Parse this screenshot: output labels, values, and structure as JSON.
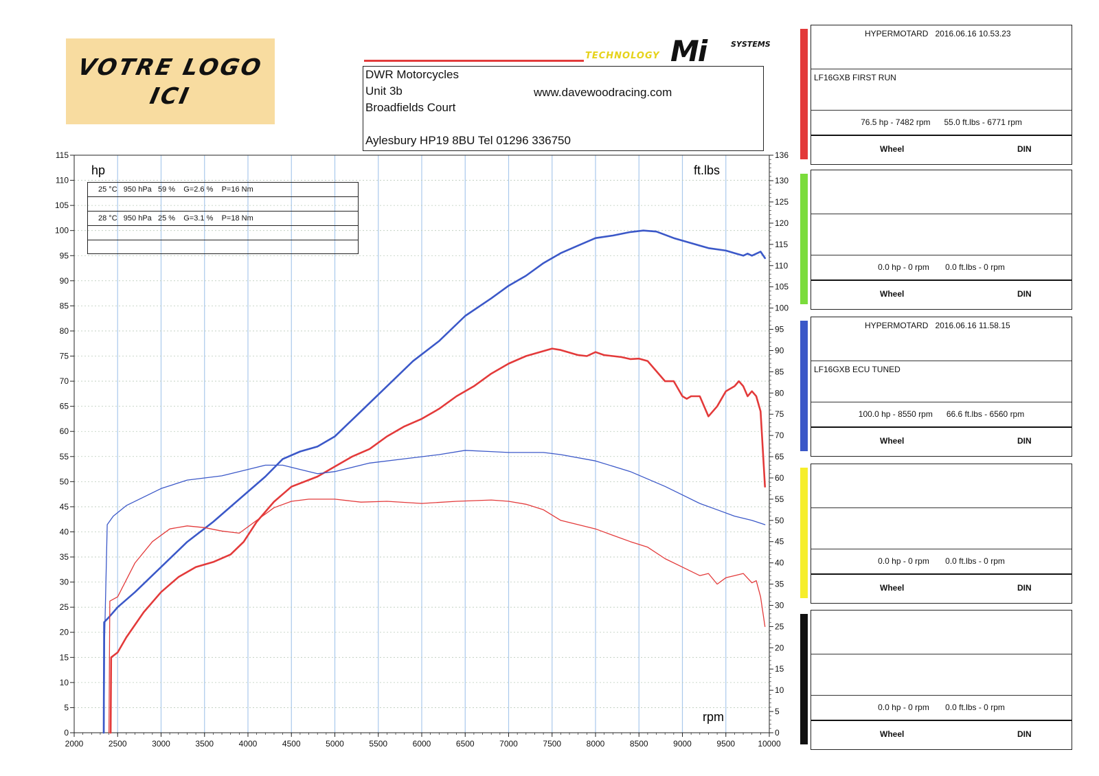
{
  "logo": {
    "line1": "VOTRE LOGO",
    "line2": "ICI"
  },
  "brand": {
    "tech": "TECHNOLOGY",
    "mark": "Mi",
    "sub": "SYSTEMS"
  },
  "address": {
    "line1": "DWR Motorcycles",
    "line2": "Unit 3b",
    "line3": "Broadfields Court",
    "line4": "Aylesbury HP19 8BU   Tel 01296 336750",
    "website": "www.davewoodracing.com"
  },
  "conditions": {
    "run1": "25 °C   950 hPa   59 %    G=2.6 %    P=16 Nm",
    "run2": "28 °C   950 hPa   25 %    G=3.1 %    P=18 Nm"
  },
  "run_cards": [
    {
      "color": "#e33a3a",
      "vehicle": "HYPERMOTARD",
      "timestamp": "2016.06.16 10.53.23",
      "run_name": "LF16GXB FIRST RUN",
      "values": "76.5 hp - 7482 rpm      55.0 ft.lbs - 6771 rpm",
      "wheel": "Wheel",
      "din": "DIN"
    },
    {
      "color": "#7bdc3c",
      "vehicle": "",
      "timestamp": "",
      "run_name": "",
      "values": "0.0 hp - 0 rpm       0.0 ft.lbs - 0 rpm",
      "wheel": "Wheel",
      "din": "DIN"
    },
    {
      "color": "#3b58c8",
      "vehicle": "HYPERMOTARD",
      "timestamp": "2016.06.16 11.58.15",
      "run_name": "LF16GXB ECU TUNED",
      "values": "100.0 hp - 8550 rpm      66.6 ft.lbs - 6560 rpm",
      "wheel": "Wheel",
      "din": "DIN"
    },
    {
      "color": "#f6ee2a",
      "vehicle": "",
      "timestamp": "",
      "run_name": "",
      "values": "0.0 hp - 0 rpm       0.0 ft.lbs - 0 rpm",
      "wheel": "Wheel",
      "din": "DIN"
    },
    {
      "color": "#111111",
      "vehicle": "",
      "timestamp": "",
      "run_name": "",
      "values": "0.0 hp - 0 rpm       0.0 ft.lbs - 0 rpm",
      "wheel": "Wheel",
      "din": "DIN"
    }
  ],
  "chart_data": {
    "type": "line",
    "ylabel": "hp",
    "y2label": "ft.lbs",
    "xlabel": "rpm",
    "xlim": [
      2000,
      10000
    ],
    "ylim": [
      0,
      115
    ],
    "y2lim": [
      0,
      136
    ],
    "x_ticks": [
      2000,
      2500,
      3000,
      3500,
      4000,
      4500,
      5000,
      5500,
      6000,
      6500,
      7000,
      7500,
      8000,
      8500,
      9000,
      9500,
      10000
    ],
    "y_ticks": [
      0,
      5,
      10,
      15,
      20,
      25,
      30,
      35,
      40,
      45,
      50,
      55,
      60,
      65,
      70,
      75,
      80,
      85,
      90,
      95,
      100,
      105,
      110,
      115
    ],
    "y2_ticks": [
      0,
      5,
      10,
      15,
      20,
      25,
      30,
      35,
      40,
      45,
      50,
      55,
      60,
      65,
      70,
      75,
      80,
      85,
      90,
      95,
      100,
      105,
      110,
      115,
      120,
      125,
      130,
      136
    ],
    "grid": true,
    "series": [
      {
        "run": "LF16GXB FIRST RUN",
        "quantity": "hp",
        "axis": "left",
        "color": "#e33a3a",
        "weight": "thick",
        "x": [
          2420,
          2425,
          2500,
          2600,
          2800,
          3000,
          3200,
          3400,
          3600,
          3800,
          3950,
          4100,
          4300,
          4500,
          4800,
          5000,
          5200,
          5400,
          5600,
          5800,
          6000,
          6200,
          6400,
          6600,
          6800,
          7000,
          7200,
          7400,
          7500,
          7600,
          7800,
          7900,
          8000,
          8100,
          8200,
          8300,
          8400,
          8500,
          8600,
          8700,
          8800,
          8900,
          9000,
          9050,
          9100,
          9200,
          9300,
          9400,
          9500,
          9600,
          9650,
          9700,
          9750,
          9800,
          9850,
          9900,
          9950
        ],
        "y": [
          0,
          15,
          16,
          19,
          24,
          28,
          31,
          33,
          34,
          35.5,
          38,
          42,
          46,
          49,
          51,
          53,
          55,
          56.5,
          59,
          61,
          62.5,
          64.5,
          67,
          69,
          71.5,
          73.5,
          75,
          76,
          76.5,
          76.2,
          75.2,
          75,
          75.8,
          75.2,
          75,
          74.8,
          74.4,
          74.5,
          74,
          72,
          70,
          70,
          67,
          66.5,
          67,
          67,
          63,
          65,
          68,
          69,
          70,
          69,
          67,
          68,
          67,
          64,
          49
        ]
      },
      {
        "run": "LF16GXB ECU TUNED",
        "quantity": "hp",
        "axis": "left",
        "color": "#3b58c8",
        "weight": "thick",
        "x": [
          2340,
          2345,
          2400,
          2500,
          2700,
          3000,
          3300,
          3600,
          3900,
          4200,
          4400,
          4600,
          4800,
          5000,
          5300,
          5600,
          5900,
          6200,
          6500,
          6800,
          7000,
          7200,
          7400,
          7600,
          7800,
          8000,
          8200,
          8400,
          8550,
          8700,
          8900,
          9100,
          9300,
          9500,
          9600,
          9700,
          9750,
          9800,
          9900,
          9950
        ],
        "y": [
          0,
          22,
          23,
          25,
          28,
          33,
          38,
          42,
          46.5,
          51,
          54.5,
          56,
          57,
          59,
          64,
          69,
          74,
          78,
          83,
          86.5,
          89,
          91,
          93.5,
          95.5,
          97,
          98.5,
          99,
          99.7,
          100,
          99.8,
          98.5,
          97.5,
          96.5,
          96,
          95.5,
          95,
          95.4,
          95,
          95.8,
          94.5
        ]
      },
      {
        "run": "LF16GXB FIRST RUN",
        "quantity": "ft.lbs",
        "axis": "right",
        "color": "#e33a3a",
        "weight": "thin",
        "x": [
          2400,
          2410,
          2500,
          2700,
          2900,
          3100,
          3300,
          3500,
          3700,
          3900,
          4100,
          4300,
          4500,
          4700,
          5000,
          5300,
          5600,
          6000,
          6400,
          6800,
          7000,
          7200,
          7400,
          7600,
          7800,
          8000,
          8200,
          8400,
          8600,
          8800,
          9000,
          9200,
          9300,
          9400,
          9500,
          9600,
          9700,
          9800,
          9850,
          9900,
          9950
        ],
        "y": [
          0,
          31,
          32,
          40,
          45,
          48,
          48.7,
          48.3,
          47.5,
          47,
          50,
          53,
          54.5,
          55,
          55,
          54.3,
          54.5,
          54,
          54.5,
          54.8,
          54.5,
          53.8,
          52.5,
          50,
          49,
          48,
          46.5,
          45,
          43.7,
          41,
          39,
          37,
          37.5,
          35,
          36.5,
          37,
          37.5,
          35.3,
          35.8,
          32,
          25
        ]
      },
      {
        "run": "LF16GXB ECU TUNED",
        "quantity": "ft.lbs",
        "axis": "right",
        "color": "#3b58c8",
        "weight": "thin",
        "x": [
          2345,
          2350,
          2380,
          2450,
          2600,
          2800,
          3000,
          3300,
          3700,
          4000,
          4200,
          4400,
          4600,
          4800,
          5000,
          5400,
          5800,
          6200,
          6500,
          6800,
          7000,
          7400,
          7600,
          8000,
          8400,
          8800,
          9000,
          9200,
          9400,
          9600,
          9800,
          9950
        ],
        "y": [
          0,
          22,
          49,
          51,
          53.5,
          55.5,
          57.5,
          59.5,
          60.5,
          62,
          63,
          63,
          62,
          61,
          61.5,
          63.5,
          64.5,
          65.5,
          66.5,
          66.2,
          66,
          66,
          65.5,
          64,
          61.5,
          58,
          56,
          54,
          52.5,
          51,
          50,
          49
        ]
      }
    ]
  }
}
